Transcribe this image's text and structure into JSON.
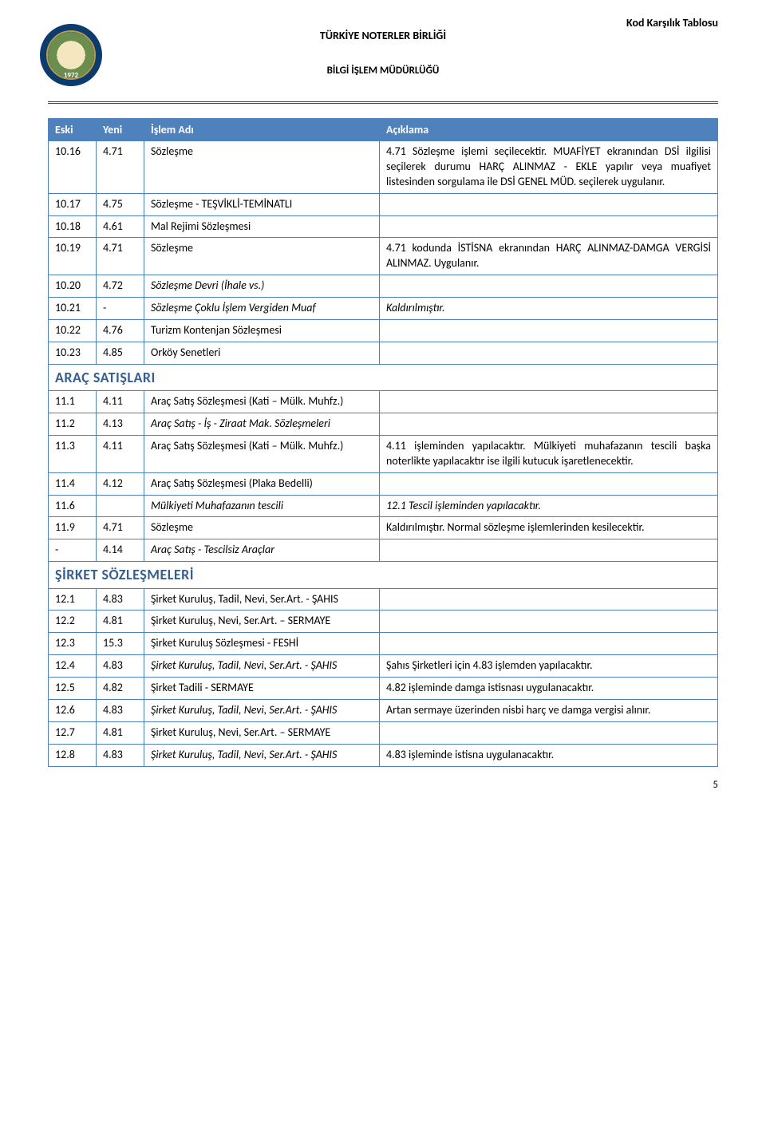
{
  "meta": {
    "top_right": "Kod Karşılık Tablosu",
    "org_title": "TÜRKİYE NOTERLER BİRLİĞİ",
    "sub_title": "BİLGİ İŞLEM MÜDÜRLÜĞÜ",
    "logo_year": "1972",
    "page_number": "5"
  },
  "columns": {
    "eski": "Eski",
    "yeni": "Yeni",
    "islem": "İşlem Adı",
    "acik": "Açıklama"
  },
  "rows": [
    {
      "type": "row",
      "eski": "10.16",
      "yeni": "4.71",
      "islem": "Sözleşme",
      "acik": "4.71 Sözleşme işlemi seçilecektir. MUAFİYET ekranından DSİ ilgilisi seçilerek durumu HARÇ ALINMAZ - EKLE yapılır veya muafiyet listesinden sorgulama ile DSİ GENEL MÜD. seçilerek uygulanır.",
      "acik_just": true
    },
    {
      "type": "row",
      "eski": "10.17",
      "yeni": "4.75",
      "islem": "Sözleşme - TEŞVİKLİ-TEMİNATLI",
      "acik": ""
    },
    {
      "type": "row",
      "eski": "10.18",
      "yeni": "4.61",
      "islem": "Mal Rejimi Sözleşmesi",
      "acik": ""
    },
    {
      "type": "row",
      "eski": "10.19",
      "yeni": "4.71",
      "islem": "Sözleşme",
      "acik": "4.71 kodunda İSTİSNA ekranından HARÇ ALINMAZ-DAMGA VERGİSİ ALINMAZ. Uygulanır.",
      "acik_just": true
    },
    {
      "type": "row",
      "eski": "10.20",
      "yeni": "4.72",
      "islem": "Sözleşme Devri (İhale vs.)",
      "islem_ital": true,
      "acik": ""
    },
    {
      "type": "row",
      "eski": "10.21",
      "yeni": "-",
      "islem": "Sözleşme Çoklu İşlem Vergiden Muaf",
      "islem_ital": true,
      "acik": "Kaldırılmıştır.",
      "acik_ital": true
    },
    {
      "type": "row",
      "eski": "10.22",
      "yeni": "4.76",
      "islem": "Turizm Kontenjan Sözleşmesi",
      "acik": ""
    },
    {
      "type": "row",
      "eski": "10.23",
      "yeni": "4.85",
      "islem": "Orköy Senetleri",
      "acik": ""
    },
    {
      "type": "section",
      "title": "ARAÇ SATIŞLARI"
    },
    {
      "type": "row",
      "eski": "11.1",
      "yeni": "4.11",
      "islem": "Araç Satış Sözleşmesi (Kati – Mülk. Muhfz.)",
      "acik": ""
    },
    {
      "type": "row",
      "eski": "11.2",
      "yeni": "4.13",
      "islem": "Araç Satış - İş - Ziraat Mak. Sözleşmeleri",
      "islem_ital": true,
      "acik": ""
    },
    {
      "type": "row",
      "eski": "11.3",
      "yeni": "4.11",
      "islem": "Araç Satış Sözleşmesi (Kati – Mülk. Muhfz.)",
      "acik": "4.11 işleminden yapılacaktır. Mülkiyeti muhafazanın tescili başka noterlikte yapılacaktır ise ilgili kutucuk işaretlenecektir.",
      "acik_just": true
    },
    {
      "type": "row",
      "eski": "11.4",
      "yeni": "4.12",
      "islem": "Araç Satış Sözleşmesi (Plaka Bedelli)",
      "acik": ""
    },
    {
      "type": "row",
      "eski": "11.6",
      "yeni": "",
      "islem": "Mülkiyeti Muhafazanın tescili",
      "islem_ital": true,
      "acik": "12.1 Tescil işleminden yapılacaktır.",
      "acik_ital": true
    },
    {
      "type": "row",
      "eski": "11.9",
      "yeni": "4.71",
      "islem": "Sözleşme",
      "acik": "Kaldırılmıştır. Normal sözleşme işlemlerinden kesilecektir.",
      "acik_just": true
    },
    {
      "type": "row",
      "eski": "-",
      "yeni": "4.14",
      "islem": "Araç Satış - Tescilsiz Araçlar",
      "islem_ital": true,
      "acik": ""
    },
    {
      "type": "section",
      "title": "ŞİRKET SÖZLEŞMELERİ"
    },
    {
      "type": "row",
      "eski": "12.1",
      "yeni": "4.83",
      "islem": "Şirket Kuruluş, Tadil, Nevi, Ser.Art. - ŞAHIS",
      "acik": ""
    },
    {
      "type": "row",
      "eski": "12.2",
      "yeni": "4.81",
      "islem": "Şirket Kuruluş, Nevi, Ser.Art. – SERMAYE",
      "acik": ""
    },
    {
      "type": "row",
      "eski": "12.3",
      "yeni": "15.3",
      "islem": "Şirket Kuruluş Sözleşmesi - FESHİ",
      "acik": ""
    },
    {
      "type": "row",
      "eski": "12.4",
      "yeni": "4.83",
      "islem": "Şirket Kuruluş, Tadil, Nevi, Ser.Art. - ŞAHIS",
      "islem_ital": true,
      "acik": "Şahıs Şirketleri için 4.83 işlemden yapılacaktır."
    },
    {
      "type": "row",
      "eski": "12.5",
      "yeni": "4.82",
      "islem": "Şirket Tadili - SERMAYE",
      "acik": "4.82 işleminde damga istisnası uygulanacaktır."
    },
    {
      "type": "row",
      "eski": "12.6",
      "yeni": "4.83",
      "islem": "Şirket Kuruluş, Tadil, Nevi, Ser.Art. - ŞAHIS",
      "islem_ital": true,
      "acik": "Artan sermaye üzerinden nisbi harç ve damga vergisi alınır."
    },
    {
      "type": "row",
      "eski": "12.7",
      "yeni": "4.81",
      "islem": "Şirket Kuruluş, Nevi, Ser.Art. – SERMAYE",
      "acik": ""
    },
    {
      "type": "row",
      "eski": "12.8",
      "yeni": "4.83",
      "islem": "Şirket Kuruluş, Tadil, Nevi, Ser.Art. - ŞAHIS",
      "islem_ital": true,
      "acik": "4.83 işleminde istisna uygulanacaktır."
    }
  ]
}
